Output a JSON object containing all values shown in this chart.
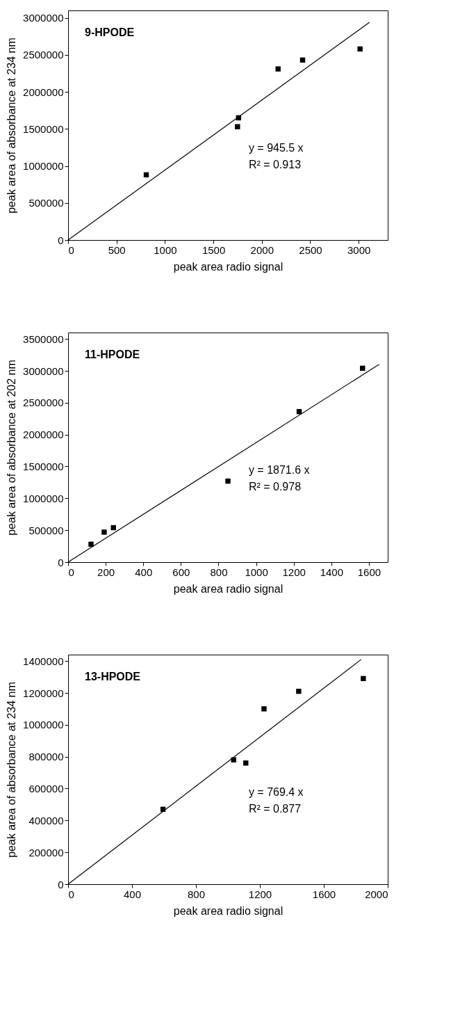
{
  "chart_data": [
    {
      "type": "scatter",
      "title": "9-HPODE",
      "xlabel": "peak area radio signal",
      "ylabel": "peak area of absorbance at 234 nm",
      "xlim": [
        0,
        3300
      ],
      "xticks": [
        0,
        500,
        1000,
        1500,
        2000,
        2500,
        3000
      ],
      "ylim": [
        0,
        3100000
      ],
      "yticks": [
        0,
        500000,
        1000000,
        1500000,
        2000000,
        2500000,
        3000000
      ],
      "grid": false,
      "series": [
        {
          "color": "#000000",
          "marker": "square",
          "x": [
            807,
            1749,
            1760,
            2168,
            2421,
            3014
          ],
          "values": [
            880000,
            1530000,
            1650000,
            2310000,
            2430000,
            2580000
          ]
        },
        {
          "type": "line",
          "marker": "none",
          "color": "#000000",
          "x": [
            0,
            3112
          ],
          "values": [
            0,
            2940000
          ]
        }
      ],
      "annotations": [
        "y = 945.5 x",
        "R² = 0.913"
      ]
    },
    {
      "type": "scatter",
      "title": "11-HPODE",
      "xlabel": "peak area radio signal",
      "ylabel": "peak area of absorbance at 202 nm",
      "xlim": [
        0,
        1700
      ],
      "xticks": [
        0,
        200,
        400,
        600,
        800,
        1000,
        1200,
        1400,
        1600
      ],
      "ylim": [
        0,
        3600000
      ],
      "yticks": [
        0,
        500000,
        1000000,
        1500000,
        2000000,
        2500000,
        3000000,
        3500000
      ],
      "grid": false,
      "series": [
        {
          "color": "#000000",
          "marker": "square",
          "x": [
            122,
            192,
            241,
            850,
            1229,
            1566
          ],
          "values": [
            280000,
            470000,
            540000,
            1270000,
            2360000,
            3040000
          ]
        },
        {
          "type": "line",
          "marker": "none",
          "color": "#000000",
          "x": [
            0,
            1654
          ],
          "values": [
            0,
            3100000
          ]
        }
      ],
      "annotations": [
        "y = 1871.6 x",
        "R² = 0.978"
      ]
    },
    {
      "type": "scatter",
      "title": "13-HPODE",
      "xlabel": "peak area radio signal",
      "ylabel": "peak area of absorbance at 234 nm",
      "xlim": [
        0,
        2000
      ],
      "xticks": [
        0,
        400,
        800,
        1200,
        1600,
        2000
      ],
      "ylim": [
        0,
        1440000
      ],
      "yticks": [
        0,
        200000,
        400000,
        600000,
        800000,
        1000000,
        1200000,
        1400000
      ],
      "grid": false,
      "series": [
        {
          "color": "#000000",
          "marker": "square",
          "x": [
            594,
            1036,
            1112,
            1226,
            1443,
            1847
          ],
          "values": [
            470000,
            780000,
            760000,
            1100000,
            1210000,
            1290000
          ]
        },
        {
          "type": "line",
          "marker": "none",
          "color": "#000000",
          "x": [
            0,
            1834
          ],
          "values": [
            0,
            1410000
          ]
        }
      ],
      "annotations": [
        "y = 769.4 x",
        "R² = 0.877"
      ]
    }
  ]
}
